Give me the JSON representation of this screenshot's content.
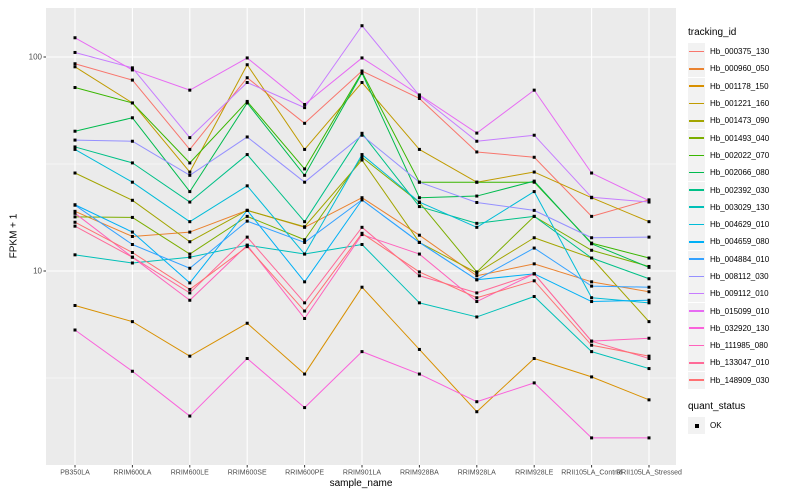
{
  "chart_data": {
    "type": "line",
    "title": "",
    "xlabel": "sample_name",
    "ylabel": "FPKM + 1",
    "y_scale": "log10",
    "y_ticks": [
      10,
      100
    ],
    "y_minor_breaks": [
      3.162,
      31.62
    ],
    "ylim": [
      1.24,
      169
    ],
    "grid": "on",
    "marker": {
      "shape": "square",
      "color": "#000000"
    },
    "style": {
      "panel_background": "#EBEBEB",
      "grid_color": "#FFFFFF",
      "tick_color": "#333333",
      "tick_label_color": "#4D4D4D"
    },
    "categories": [
      "PB350LA",
      "RRIM600LA",
      "RRIM600LE",
      "RRIM600SE",
      "RRIM600PE",
      "RRIM901LA",
      "RRIM928BA",
      "RRIM928LA",
      "RRIM928LE",
      "RRII105LA_Control",
      "RRII105LA_Stressed"
    ],
    "series": [
      {
        "name": "Hb_000375_130",
        "color": "#F8766D",
        "values": [
          93,
          78,
          37,
          80,
          49,
          86,
          64,
          36,
          34,
          18,
          21.5
        ]
      },
      {
        "name": "Hb_000960_050",
        "color": "#EA8331",
        "values": [
          19,
          14.5,
          15.2,
          19.2,
          16,
          22,
          14.7,
          9.5,
          10.8,
          8.9,
          8.0
        ]
      },
      {
        "name": "Hb_001178_150",
        "color": "#D89000",
        "values": [
          6.9,
          5.8,
          4.0,
          5.7,
          3.3,
          8.4,
          4.3,
          2.2,
          3.9,
          3.2,
          2.5
        ]
      },
      {
        "name": "Hb_001221_160",
        "color": "#C09B00",
        "values": [
          90,
          61,
          29,
          92,
          37,
          76,
          37,
          26,
          29,
          22,
          17
        ]
      },
      {
        "name": "Hb_001473_090",
        "color": "#A3A500",
        "values": [
          28.7,
          21.4,
          13.7,
          19.2,
          16.1,
          33,
          13.6,
          9.8,
          14.3,
          11.5,
          5.8
        ]
      },
      {
        "name": "Hb_001493_040",
        "color": "#7CAE00",
        "values": [
          17.9,
          17.8,
          12,
          18,
          14,
          34,
          20.9,
          9.9,
          18,
          12.5,
          10.5
        ]
      },
      {
        "name": "Hb_002022_070",
        "color": "#39B600",
        "values": [
          72,
          61,
          32,
          62,
          30,
          85,
          26,
          26,
          26,
          13.5,
          11.5
        ]
      },
      {
        "name": "Hb_002066_080",
        "color": "#00BB4E",
        "values": [
          45,
          52,
          23.5,
          61,
          28,
          84,
          22,
          22.4,
          26.3,
          13.4,
          10.4
        ]
      },
      {
        "name": "Hb_002392_030",
        "color": "#00C087",
        "values": [
          38,
          32,
          21,
          35,
          17,
          44,
          20,
          16.7,
          18,
          11.5,
          9.2
        ]
      },
      {
        "name": "Hb_003029_130",
        "color": "#00C0B8",
        "values": [
          11.9,
          10.9,
          11.6,
          13.2,
          12.0,
          13.3,
          7.1,
          6.1,
          7.6,
          4.2,
          3.5
        ]
      },
      {
        "name": "Hb_004629_010",
        "color": "#00BCD8",
        "values": [
          37,
          26,
          17,
          25,
          12,
          35,
          21,
          16,
          23.5,
          7.5,
          7.1
        ]
      },
      {
        "name": "Hb_004659_080",
        "color": "#00B0F6",
        "values": [
          20.4,
          15.2,
          8.8,
          19.2,
          8.9,
          21.5,
          13.6,
          9.1,
          9.7,
          7.2,
          7.3
        ]
      },
      {
        "name": "Hb_004884_010",
        "color": "#35A2FF",
        "values": [
          20.3,
          13.3,
          10.3,
          17.1,
          13.6,
          21.5,
          13.6,
          9.1,
          12.8,
          8.5,
          8.4
        ]
      },
      {
        "name": "Hb_008112_030",
        "color": "#9590FF",
        "values": [
          40.9,
          40.4,
          28,
          42.3,
          26,
          43.1,
          26,
          20.9,
          19.2,
          14.3,
          14.4
        ]
      },
      {
        "name": "Hb_009112_010",
        "color": "#C77CFF",
        "values": [
          105,
          89,
          42,
          76,
          58,
          140,
          66,
          40.4,
          43.1,
          22.1,
          21
        ]
      },
      {
        "name": "Hb_015099_010",
        "color": "#E76BF3",
        "values": [
          123,
          87,
          70,
          99,
          60,
          99,
          66.5,
          44.1,
          70,
          28.7,
          21.3
        ]
      },
      {
        "name": "Hb_032920_130",
        "color": "#FA62DB",
        "values": [
          5.3,
          3.4,
          2.1,
          3.9,
          2.3,
          4.2,
          3.3,
          2.45,
          3.0,
          1.66,
          1.66
        ]
      },
      {
        "name": "Hb_111985_080",
        "color": "#FF62BC",
        "values": [
          18.6,
          11.6,
          7.3,
          13.2,
          6.0,
          14.8,
          12.0,
          7.2,
          9.7,
          4.7,
          4.85
        ]
      },
      {
        "name": "Hb_133047_010",
        "color": "#FF6A98",
        "values": [
          16.2,
          11.6,
          7.9,
          14.4,
          7.1,
          16.0,
          9.5,
          7.9,
          9.7,
          4.7,
          3.9
        ]
      },
      {
        "name": "Hb_148909_030",
        "color": "#FF7173",
        "values": [
          16.9,
          12.2,
          8.2,
          13.0,
          6.5,
          15.0,
          9.9,
          7.5,
          9.0,
          4.5,
          4.0
        ]
      }
    ],
    "legend": {
      "title": "tracking_id",
      "position": "right",
      "quant_title": "quant_status",
      "quant_items": [
        {
          "label": "OK"
        }
      ]
    }
  }
}
